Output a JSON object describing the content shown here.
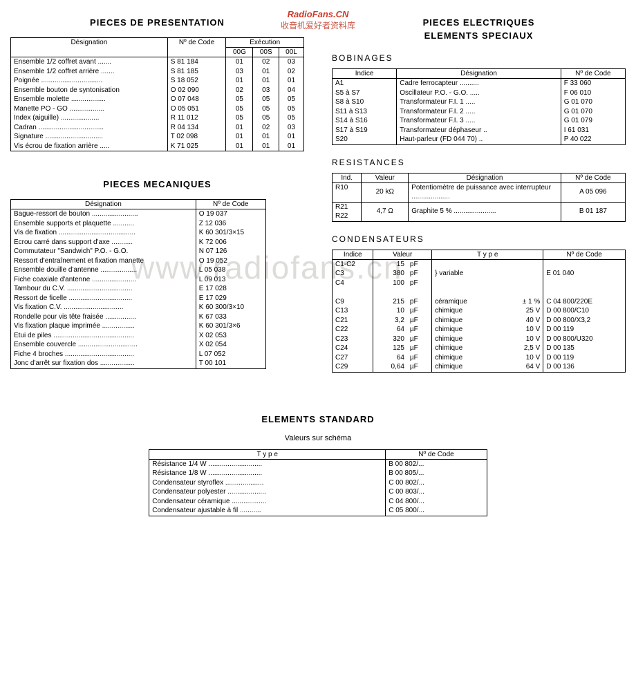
{
  "watermark": {
    "line1": "RadioFans.CN",
    "line2": "收音机爱好者资料库",
    "big": "www.radiofans.cn"
  },
  "left": {
    "presentation": {
      "title": "PIECES DE PRESENTATION",
      "headers": {
        "des": "Désignation",
        "code": "Nº de Code",
        "exec": "Exécution",
        "c1": "00G",
        "c2": "00S",
        "c3": "00L"
      },
      "rows": [
        {
          "d": "Ensemble 1/2 coffret avant",
          "dots": ".......",
          "c": "S 81 184",
          "e": [
            "01",
            "02",
            "03"
          ]
        },
        {
          "d": "Ensemble 1/2 coffret arrière",
          "dots": ".......",
          "c": "S 81 185",
          "e": [
            "03",
            "01",
            "02"
          ]
        },
        {
          "d": "Poignée",
          "dots": "................................",
          "c": "S 18 052",
          "e": [
            "01",
            "01",
            "01"
          ]
        },
        {
          "d": "Ensemble bouton de syntonisation",
          "dots": "",
          "c": "O 02 090",
          "e": [
            "02",
            "03",
            "04"
          ]
        },
        {
          "d": "Ensemble molette",
          "dots": "..................",
          "c": "O 07 048",
          "e": [
            "05",
            "05",
            "05"
          ]
        },
        {
          "d": "Manette PO - GO",
          "dots": "..................",
          "c": "O 05 051",
          "e": [
            "05",
            "05",
            "05"
          ]
        },
        {
          "d": "Index (aiguille)",
          "dots": "....................",
          "c": "R 11 012",
          "e": [
            "05",
            "05",
            "05"
          ]
        },
        {
          "d": "Cadran",
          "dots": "..................................",
          "c": "R 04 134",
          "e": [
            "01",
            "02",
            "03"
          ]
        },
        {
          "d": "Signature",
          "dots": "..............................",
          "c": "T 02 098",
          "e": [
            "01",
            "01",
            "01"
          ]
        },
        {
          "d": "Vis écrou de fixation arrière",
          "dots": ".....",
          "c": "K 71 025",
          "e": [
            "01",
            "01",
            "01"
          ]
        }
      ]
    },
    "mecaniques": {
      "title": "PIECES MECANIQUES",
      "headers": {
        "des": "Désignation",
        "code": "Nº de Code"
      },
      "rows": [
        {
          "d": "Bague-ressort de bouton",
          "dots": "........................",
          "c": "O 19 037"
        },
        {
          "d": "Ensemble supports et plaquette",
          "dots": "...........",
          "c": "Z 12 036"
        },
        {
          "d": "Vis de fixation",
          "dots": "........................................",
          "c": "K 60 301/3×15"
        },
        {
          "d": "Ecrou carré dans support d'axe",
          "dots": "...........",
          "c": "K 72 006"
        },
        {
          "d": "Commutateur \"Sandwich\" P.O. - G.O.",
          "dots": "",
          "c": "N 07 126"
        },
        {
          "d": "Ressort d'entraînement et fixation manette",
          "dots": "",
          "c": "O 19 052"
        },
        {
          "d": "Ensemble douille d'antenne",
          "dots": "...................",
          "c": "L 05 038"
        },
        {
          "d": "Fiche coaxiale d'antenne",
          "dots": ".......................",
          "c": "L 09 013"
        },
        {
          "d": "Tambour du C.V.",
          "dots": "..................................",
          "c": "E 17 028"
        },
        {
          "d": "Ressort de ficelle",
          "dots": ".................................",
          "c": "E 17 029"
        },
        {
          "d": "Vis fixation C.V.",
          "dots": "...............................",
          "c": "K 60 300/3×10"
        },
        {
          "d": "Rondelle pour vis tête fraisée",
          "dots": "................",
          "c": "K 67 033"
        },
        {
          "d": "Vis fixation plaque imprimée",
          "dots": ".................",
          "c": "K 60 301/3×6"
        },
        {
          "d": "Etui de piles",
          "dots": "..........................................",
          "c": "X 02 053"
        },
        {
          "d": "Ensemble couvercle",
          "dots": "...............................",
          "c": "X 02 054"
        },
        {
          "d": "Fiche 4 broches",
          "dots": "....................................",
          "c": "L 07 052"
        },
        {
          "d": "Jonc d'arrêt sur fixation dos",
          "dots": "..................",
          "c": "T 00 101"
        }
      ]
    }
  },
  "right": {
    "title1": "PIECES ELECTRIQUES",
    "title2": "ELEMENTS SPECIAUX",
    "bobinages": {
      "title": "BOBINAGES",
      "headers": {
        "ind": "Indice",
        "des": "Désignation",
        "code": "Nº de Code"
      },
      "rows": [
        {
          "i": "A1",
          "d": "Cadre ferrocapteur",
          "dots": "..........",
          "c": "F 33 060"
        },
        {
          "i": "S5  à S7",
          "d": "Oscillateur P.O. - G.O.",
          "dots": ".....",
          "c": "F 06 010"
        },
        {
          "i": "S8  à S10",
          "d": "Transformateur F.I. 1",
          "dots": ".....",
          "c": "G 01 070"
        },
        {
          "i": "S11 à S13",
          "d": "Transformateur F.I. 2",
          "dots": ".....",
          "c": "G 01 070"
        },
        {
          "i": "S14 à S16",
          "d": "Transformateur F.I. 3",
          "dots": ".....",
          "c": "G 01 079"
        },
        {
          "i": "S17 à S19",
          "d": "Transformateur déphaseur",
          "dots": "..",
          "c": "I 61 031"
        },
        {
          "i": "S20",
          "d": "Haut-parleur (FD 044 70)",
          "dots": "..",
          "c": "P 40 022"
        }
      ]
    },
    "resistances": {
      "title": "RESISTANCES",
      "headers": {
        "ind": "Ind.",
        "val": "Valeur",
        "des": "Désignation",
        "code": "Nº de Code"
      },
      "rows": [
        {
          "i": "R10",
          "v": "20   kΩ",
          "d": "Potentiomètre de puissance avec interrupteur   ....................",
          "c": "A 05 096"
        },
        {
          "i": "R21\nR22",
          "v": "4,7  Ω",
          "d": "Graphite 5 %   ......................",
          "c": "B 01 187"
        }
      ]
    },
    "condensateurs": {
      "title": "CONDENSATEURS",
      "headers": {
        "ind": "Indice",
        "val": "Valeur",
        "type": "T y p e",
        "code": "Nº de Code"
      },
      "group1": [
        {
          "i": "C1-C2",
          "v": "15",
          "u": "pF"
        },
        {
          "i": "C3",
          "v": "380",
          "u": "pF"
        },
        {
          "i": "C4",
          "v": "100",
          "u": "pF"
        }
      ],
      "group1_type": "variable",
      "group1_code": "E 01 040",
      "rows": [
        {
          "i": "C9",
          "v": "215",
          "u": "pF",
          "t": "céramique",
          "tv": "± 1 %",
          "c": "C 04 800/220E"
        },
        {
          "i": "C13",
          "v": "10",
          "u": "µF",
          "t": "chimique",
          "tv": "25   V",
          "c": "D 00 800/C10"
        },
        {
          "i": "C21",
          "v": "3,2",
          "u": "µF",
          "t": "chimique",
          "tv": "40   V",
          "c": "D 00 800/X3,2"
        },
        {
          "i": "C22",
          "v": "64",
          "u": "µF",
          "t": "chimique",
          "tv": "10   V",
          "c": "D 00 119"
        },
        {
          "i": "C23",
          "v": "320",
          "u": "µF",
          "t": "chimique",
          "tv": "10   V",
          "c": "D 00 800/U320"
        },
        {
          "i": "C24",
          "v": "125",
          "u": "µF",
          "t": "chimique",
          "tv": "2,5 V",
          "c": "D 00 135"
        },
        {
          "i": "C27",
          "v": "64",
          "u": "µF",
          "t": "chimique",
          "tv": "10   V",
          "c": "D 00 119"
        },
        {
          "i": "C29",
          "v": "0,64",
          "u": "µF",
          "t": "chimique",
          "tv": "64   V",
          "c": "D 00 136"
        }
      ]
    }
  },
  "standard": {
    "title": "ELEMENTS STANDARD",
    "sub": "Valeurs sur schéma",
    "headers": {
      "type": "T y p e",
      "code": "Nº de Code"
    },
    "rows": [
      {
        "t": "Résistance 1/4 W",
        "dots": "............................",
        "c": "B 00 802/..."
      },
      {
        "t": "Résistance 1/8 W",
        "dots": "............................",
        "c": "B 00 805/..."
      },
      {
        "t": "Condensateur styroflex",
        "dots": "....................",
        "c": "C 00 802/..."
      },
      {
        "t": "Condensateur polyester",
        "dots": "....................",
        "c": "C 00 803/..."
      },
      {
        "t": "Condensateur céramique",
        "dots": "..................",
        "c": "C 04 800/..."
      },
      {
        "t": "Condensateur ajustable à fil",
        "dots": "...........",
        "c": "C 05 800/..."
      }
    ]
  }
}
